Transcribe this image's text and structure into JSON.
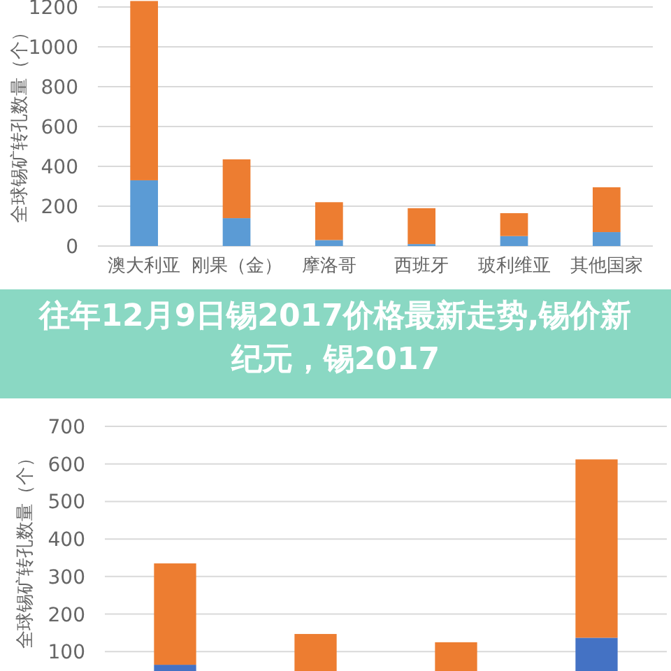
{
  "chart_data": [
    {
      "type": "bar",
      "stacked": true,
      "ylabel": "全球锡矿转孔数量（个）",
      "categories": [
        "澳大利亚",
        "刚果（金）",
        "摩洛哥",
        "西班牙",
        "玻利维亚",
        "其他国家"
      ],
      "series": [
        {
          "color": "#5b9bd5",
          "values": [
            330,
            140,
            30,
            10,
            50,
            70
          ]
        },
        {
          "color": "#ed7d31",
          "values": [
            900,
            295,
            190,
            180,
            115,
            225
          ]
        }
      ],
      "ylim": [
        0,
        1235
      ],
      "yticks": [
        0,
        200,
        400,
        600,
        800,
        1000,
        1200
      ],
      "grid": "y"
    },
    {
      "type": "bar",
      "stacked": true,
      "title": "往年12月9日锡2017价格最新走势,锡价新纪元，锡2017",
      "ylabel": "全球锡矿转孔数量（个）",
      "categories": [
        null,
        null,
        null,
        null
      ],
      "series": [
        {
          "color": "#4472c4",
          "values": [
            65,
            null,
            null,
            137
          ]
        },
        {
          "color": "#ed7d31",
          "values": [
            270,
            147,
            125,
            475
          ]
        }
      ],
      "ylim": [
        0,
        700
      ],
      "yticks": [
        100,
        200,
        300,
        400,
        500,
        600,
        700
      ],
      "grid": "y"
    }
  ]
}
